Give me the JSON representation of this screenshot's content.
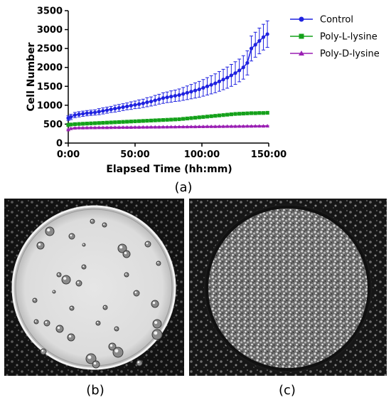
{
  "chart_data": {
    "type": "line",
    "xlabel": "Elapsed Time (hh:mm)",
    "ylabel": "Cell Number",
    "x_tick_labels": [
      "0:00",
      "50:00",
      "100:00",
      "150:00"
    ],
    "x_ticks": [
      0,
      50,
      100,
      150
    ],
    "xlim": [
      0,
      150
    ],
    "y_ticks": [
      0,
      500,
      1000,
      1500,
      2000,
      2500,
      3000,
      3500
    ],
    "ylim": [
      0,
      3500
    ],
    "legend_position": "right",
    "grid": false,
    "x": [
      0,
      2,
      5,
      8,
      11,
      14,
      17,
      20,
      23,
      26,
      29,
      32,
      35,
      38,
      41,
      44,
      47,
      50,
      53,
      56,
      59,
      62,
      65,
      68,
      71,
      74,
      77,
      80,
      83,
      86,
      89,
      92,
      95,
      98,
      101,
      104,
      107,
      110,
      113,
      116,
      119,
      122,
      125,
      128,
      131,
      134,
      137,
      140,
      143,
      146,
      149
    ],
    "series": [
      {
        "name": "Control",
        "color": "#1f22e0",
        "marker": "circle",
        "values": [
          660,
          690,
          740,
          760,
          775,
          790,
          800,
          810,
          830,
          850,
          870,
          890,
          910,
          930,
          950,
          970,
          990,
          1010,
          1030,
          1050,
          1080,
          1100,
          1130,
          1160,
          1190,
          1210,
          1230,
          1250,
          1270,
          1300,
          1330,
          1360,
          1390,
          1420,
          1460,
          1500,
          1540,
          1580,
          1630,
          1680,
          1730,
          1790,
          1850,
          1920,
          2000,
          2120,
          2500,
          2600,
          2700,
          2800,
          2880
        ],
        "errors": [
          60,
          70,
          70,
          70,
          70,
          70,
          70,
          70,
          80,
          80,
          80,
          80,
          90,
          90,
          90,
          90,
          100,
          100,
          110,
          110,
          120,
          120,
          130,
          130,
          140,
          140,
          150,
          150,
          160,
          170,
          180,
          190,
          200,
          210,
          220,
          230,
          240,
          250,
          260,
          270,
          280,
          290,
          300,
          300,
          310,
          320,
          330,
          330,
          340,
          340,
          350
        ]
      },
      {
        "name": "Poly-L-lysine",
        "color": "#14a11a",
        "marker": "square",
        "values": [
          480,
          490,
          500,
          505,
          510,
          515,
          520,
          525,
          530,
          535,
          540,
          545,
          550,
          555,
          560,
          565,
          570,
          575,
          580,
          585,
          590,
          595,
          600,
          605,
          610,
          615,
          620,
          625,
          630,
          640,
          650,
          660,
          670,
          680,
          690,
          700,
          710,
          720,
          730,
          740,
          750,
          760,
          770,
          775,
          780,
          785,
          790,
          790,
          795,
          795,
          800
        ],
        "errors": [
          30,
          30,
          30,
          30,
          30,
          30,
          30,
          30,
          30,
          30,
          30,
          30,
          30,
          30,
          30,
          30,
          30,
          30,
          30,
          30,
          30,
          30,
          30,
          30,
          30,
          30,
          30,
          30,
          30,
          30,
          30,
          30,
          30,
          30,
          30,
          30,
          30,
          30,
          30,
          30,
          30,
          30,
          30,
          30,
          30,
          30,
          30,
          30,
          30,
          30,
          30
        ]
      },
      {
        "name": "Poly-D-lysine",
        "color": "#9a1fb3",
        "marker": "triangle",
        "values": [
          350,
          380,
          395,
          400,
          400,
          402,
          404,
          405,
          406,
          407,
          408,
          410,
          411,
          412,
          413,
          414,
          415,
          416,
          417,
          418,
          419,
          420,
          421,
          422,
          423,
          424,
          425,
          426,
          427,
          428,
          429,
          430,
          431,
          432,
          433,
          434,
          435,
          436,
          437,
          438,
          439,
          440,
          441,
          442,
          443,
          444,
          445,
          446,
          447,
          448,
          450
        ],
        "errors": [
          20,
          20,
          20,
          15,
          15,
          15,
          15,
          15,
          15,
          15,
          15,
          15,
          15,
          15,
          15,
          15,
          15,
          15,
          15,
          15,
          15,
          15,
          15,
          15,
          15,
          15,
          15,
          15,
          15,
          15,
          15,
          15,
          15,
          15,
          15,
          15,
          15,
          15,
          15,
          15,
          15,
          15,
          15,
          15,
          15,
          15,
          15,
          15,
          15,
          15,
          15
        ]
      }
    ]
  },
  "panel_labels": {
    "a": "(a)",
    "b": "(b)",
    "c": "(c)"
  }
}
